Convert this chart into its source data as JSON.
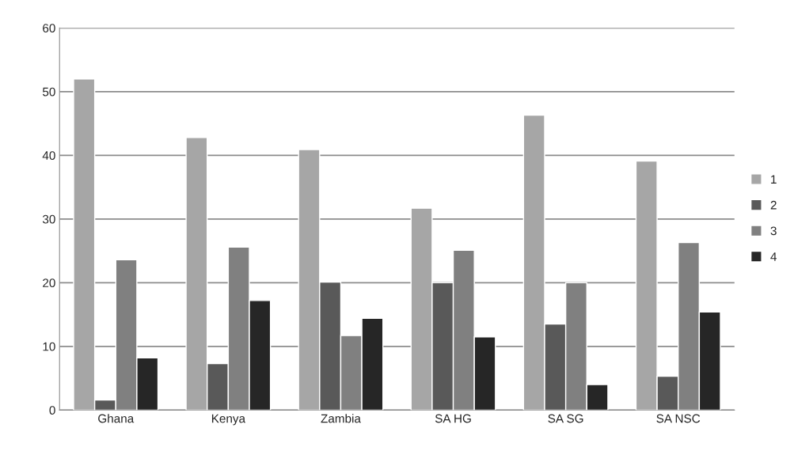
{
  "chart_data": {
    "type": "bar",
    "categories": [
      "Ghana",
      "Kenya",
      "Zambia",
      "SA HG",
      "SA SG",
      "SA NSC"
    ],
    "series": [
      {
        "name": "1",
        "color": "#a6a6a6",
        "values": [
          52.0,
          42.8,
          40.9,
          31.7,
          46.3,
          39.1
        ]
      },
      {
        "name": "2",
        "color": "#595959",
        "values": [
          1.6,
          7.3,
          20.1,
          20.0,
          13.5,
          5.3
        ]
      },
      {
        "name": "3",
        "color": "#808080",
        "values": [
          23.6,
          25.6,
          11.7,
          25.1,
          20.0,
          26.3
        ]
      },
      {
        "name": "4",
        "color": "#262626",
        "values": [
          8.2,
          17.2,
          14.4,
          11.5,
          4.0,
          15.4
        ]
      }
    ],
    "ylim": [
      0,
      60
    ],
    "yticks": [
      0,
      10,
      20,
      30,
      40,
      50,
      60
    ],
    "grid": "y",
    "legend": "right"
  }
}
